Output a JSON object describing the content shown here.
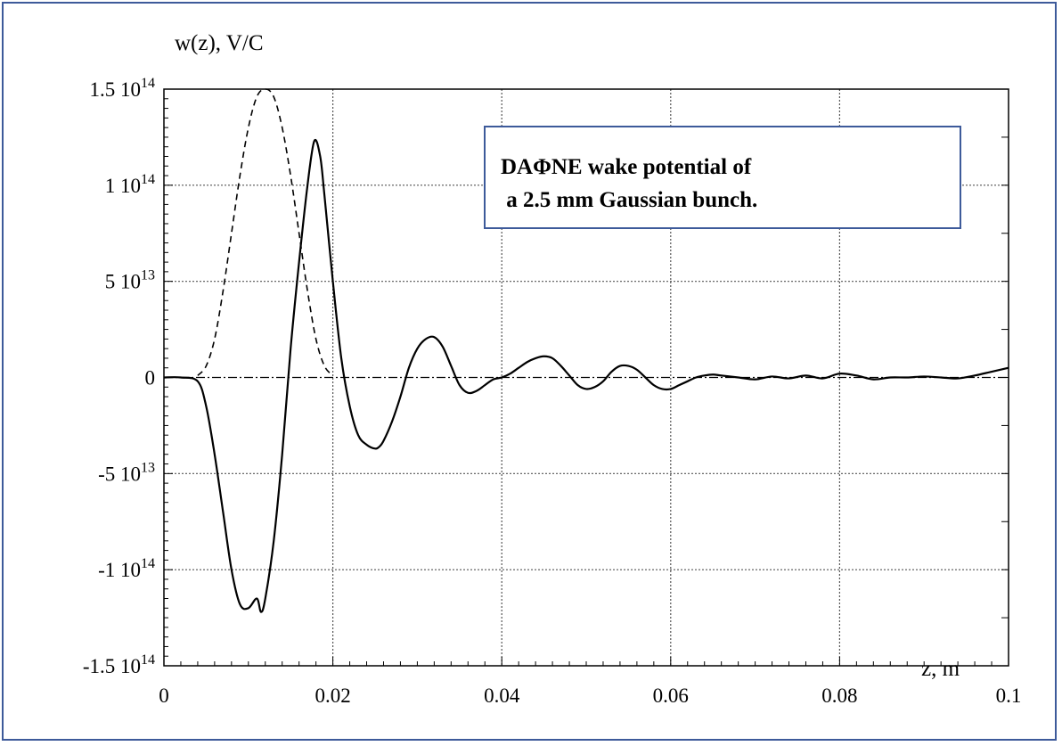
{
  "chart_data": {
    "type": "line",
    "ylabel": "w(z), V/C",
    "xlabel": "z, m",
    "xlim": [
      0,
      0.1
    ],
    "ylim": [
      -150000000000000.0,
      150000000000000.0
    ],
    "grid": true,
    "x_ticks": [
      "0",
      "0.02",
      "0.04",
      "0.06",
      "0.08",
      "0.1"
    ],
    "y_ticks": [
      {
        "mant": "1.5 10",
        "exp": "14",
        "value": 150000000000000.0
      },
      {
        "mant": "1 10",
        "exp": "14",
        "value": 100000000000000.0
      },
      {
        "mant": "5 10",
        "exp": "13",
        "value": 50000000000000.0
      },
      {
        "mant": "0",
        "exp": "",
        "value": 0
      },
      {
        "mant": "-5 10",
        "exp": "13",
        "value": -50000000000000.0
      },
      {
        "mant": "-1 10",
        "exp": "14",
        "value": -100000000000000.0
      },
      {
        "mant": "-1.5 10",
        "exp": "14",
        "value": -150000000000000.0
      }
    ],
    "annotation": {
      "line1": "DAΦNE wake potential of",
      "line2": " a 2.5 mm Gaussian bunch."
    },
    "series": [
      {
        "style": "solid",
        "x": [
          0,
          0.002,
          0.004,
          0.005,
          0.006,
          0.007,
          0.008,
          0.009,
          0.01,
          0.011,
          0.0115,
          0.012,
          0.013,
          0.014,
          0.015,
          0.016,
          0.017,
          0.0178,
          0.0185,
          0.019,
          0.02,
          0.021,
          0.022,
          0.023,
          0.024,
          0.025,
          0.0255,
          0.026,
          0.027,
          0.028,
          0.029,
          0.03,
          0.031,
          0.032,
          0.033,
          0.034,
          0.035,
          0.036,
          0.037,
          0.038,
          0.039,
          0.04,
          0.041,
          0.042,
          0.043,
          0.044,
          0.045,
          0.046,
          0.047,
          0.048,
          0.049,
          0.05,
          0.051,
          0.052,
          0.053,
          0.054,
          0.055,
          0.056,
          0.057,
          0.058,
          0.059,
          0.06,
          0.061,
          0.062,
          0.063,
          0.064,
          0.065,
          0.066,
          0.068,
          0.07,
          0.072,
          0.074,
          0.076,
          0.078,
          0.08,
          0.082,
          0.084,
          0.086,
          0.088,
          0.09,
          0.092,
          0.094,
          0.096,
          0.098,
          0.1
        ],
        "y": [
          0,
          0,
          -2000000000000.0,
          -15000000000000.0,
          -40000000000000.0,
          -70000000000000.0,
          -100000000000000.0,
          -118000000000000.0,
          -120000000000000.0,
          -115000000000000.0,
          -122000000000000.0,
          -115000000000000.0,
          -85000000000000.0,
          -40000000000000.0,
          15000000000000.0,
          60000000000000.0,
          100000000000000.0,
          123000000000000.0,
          115000000000000.0,
          95000000000000.0,
          50000000000000.0,
          10000000000000.0,
          -15000000000000.0,
          -30000000000000.0,
          -35000000000000.0,
          -37000000000000.0,
          -36000000000000.0,
          -33000000000000.0,
          -23000000000000.0,
          -10000000000000.0,
          5000000000000.0,
          15000000000000.0,
          20000000000000.0,
          21000000000000.0,
          16000000000000.0,
          6000000000000.0,
          -4000000000000.0,
          -8000000000000.0,
          -7000000000000.0,
          -4000000000000.0,
          -1000000000000.0,
          0,
          2000000000000.0,
          5000000000000.0,
          8000000000000.0,
          10000000000000.0,
          11000000000000.0,
          10000000000000.0,
          6000000000000.0,
          1000000000000.0,
          -4000000000000.0,
          -6000000000000.0,
          -5000000000000.0,
          -2000000000000.0,
          3000000000000.0,
          6000000000000.0,
          6000000000000.0,
          4000000000000.0,
          0,
          -4000000000000.0,
          -6000000000000.0,
          -6000000000000.0,
          -4000000000000.0,
          -2000000000000.0,
          0,
          1000000000000.0,
          1500000000000.0,
          1000000000000.0,
          0,
          -1000000000000.0,
          500000000000.0,
          -500000000000.0,
          1000000000000.0,
          -500000000000.0,
          2000000000000.0,
          1000000000000.0,
          -1000000000000.0,
          0,
          0,
          500000000000.0,
          0,
          -500000000000.0,
          1000000000000.0,
          3000000000000.0,
          5000000000000.0
        ]
      },
      {
        "style": "dashed",
        "x": [
          0.004,
          0.005,
          0.006,
          0.007,
          0.008,
          0.009,
          0.01,
          0.011,
          0.012,
          0.013,
          0.014,
          0.015,
          0.016,
          0.017,
          0.018,
          0.019,
          0.02
        ],
        "y": [
          1000000000000.0,
          6000000000000.0,
          20000000000000.0,
          45000000000000.0,
          75000000000000.0,
          105000000000000.0,
          130000000000000.0,
          146000000000000.0,
          150000000000000.0,
          146000000000000.0,
          130000000000000.0,
          105000000000000.0,
          75000000000000.0,
          45000000000000.0,
          20000000000000.0,
          6000000000000.0,
          1000000000000.0
        ]
      }
    ]
  }
}
